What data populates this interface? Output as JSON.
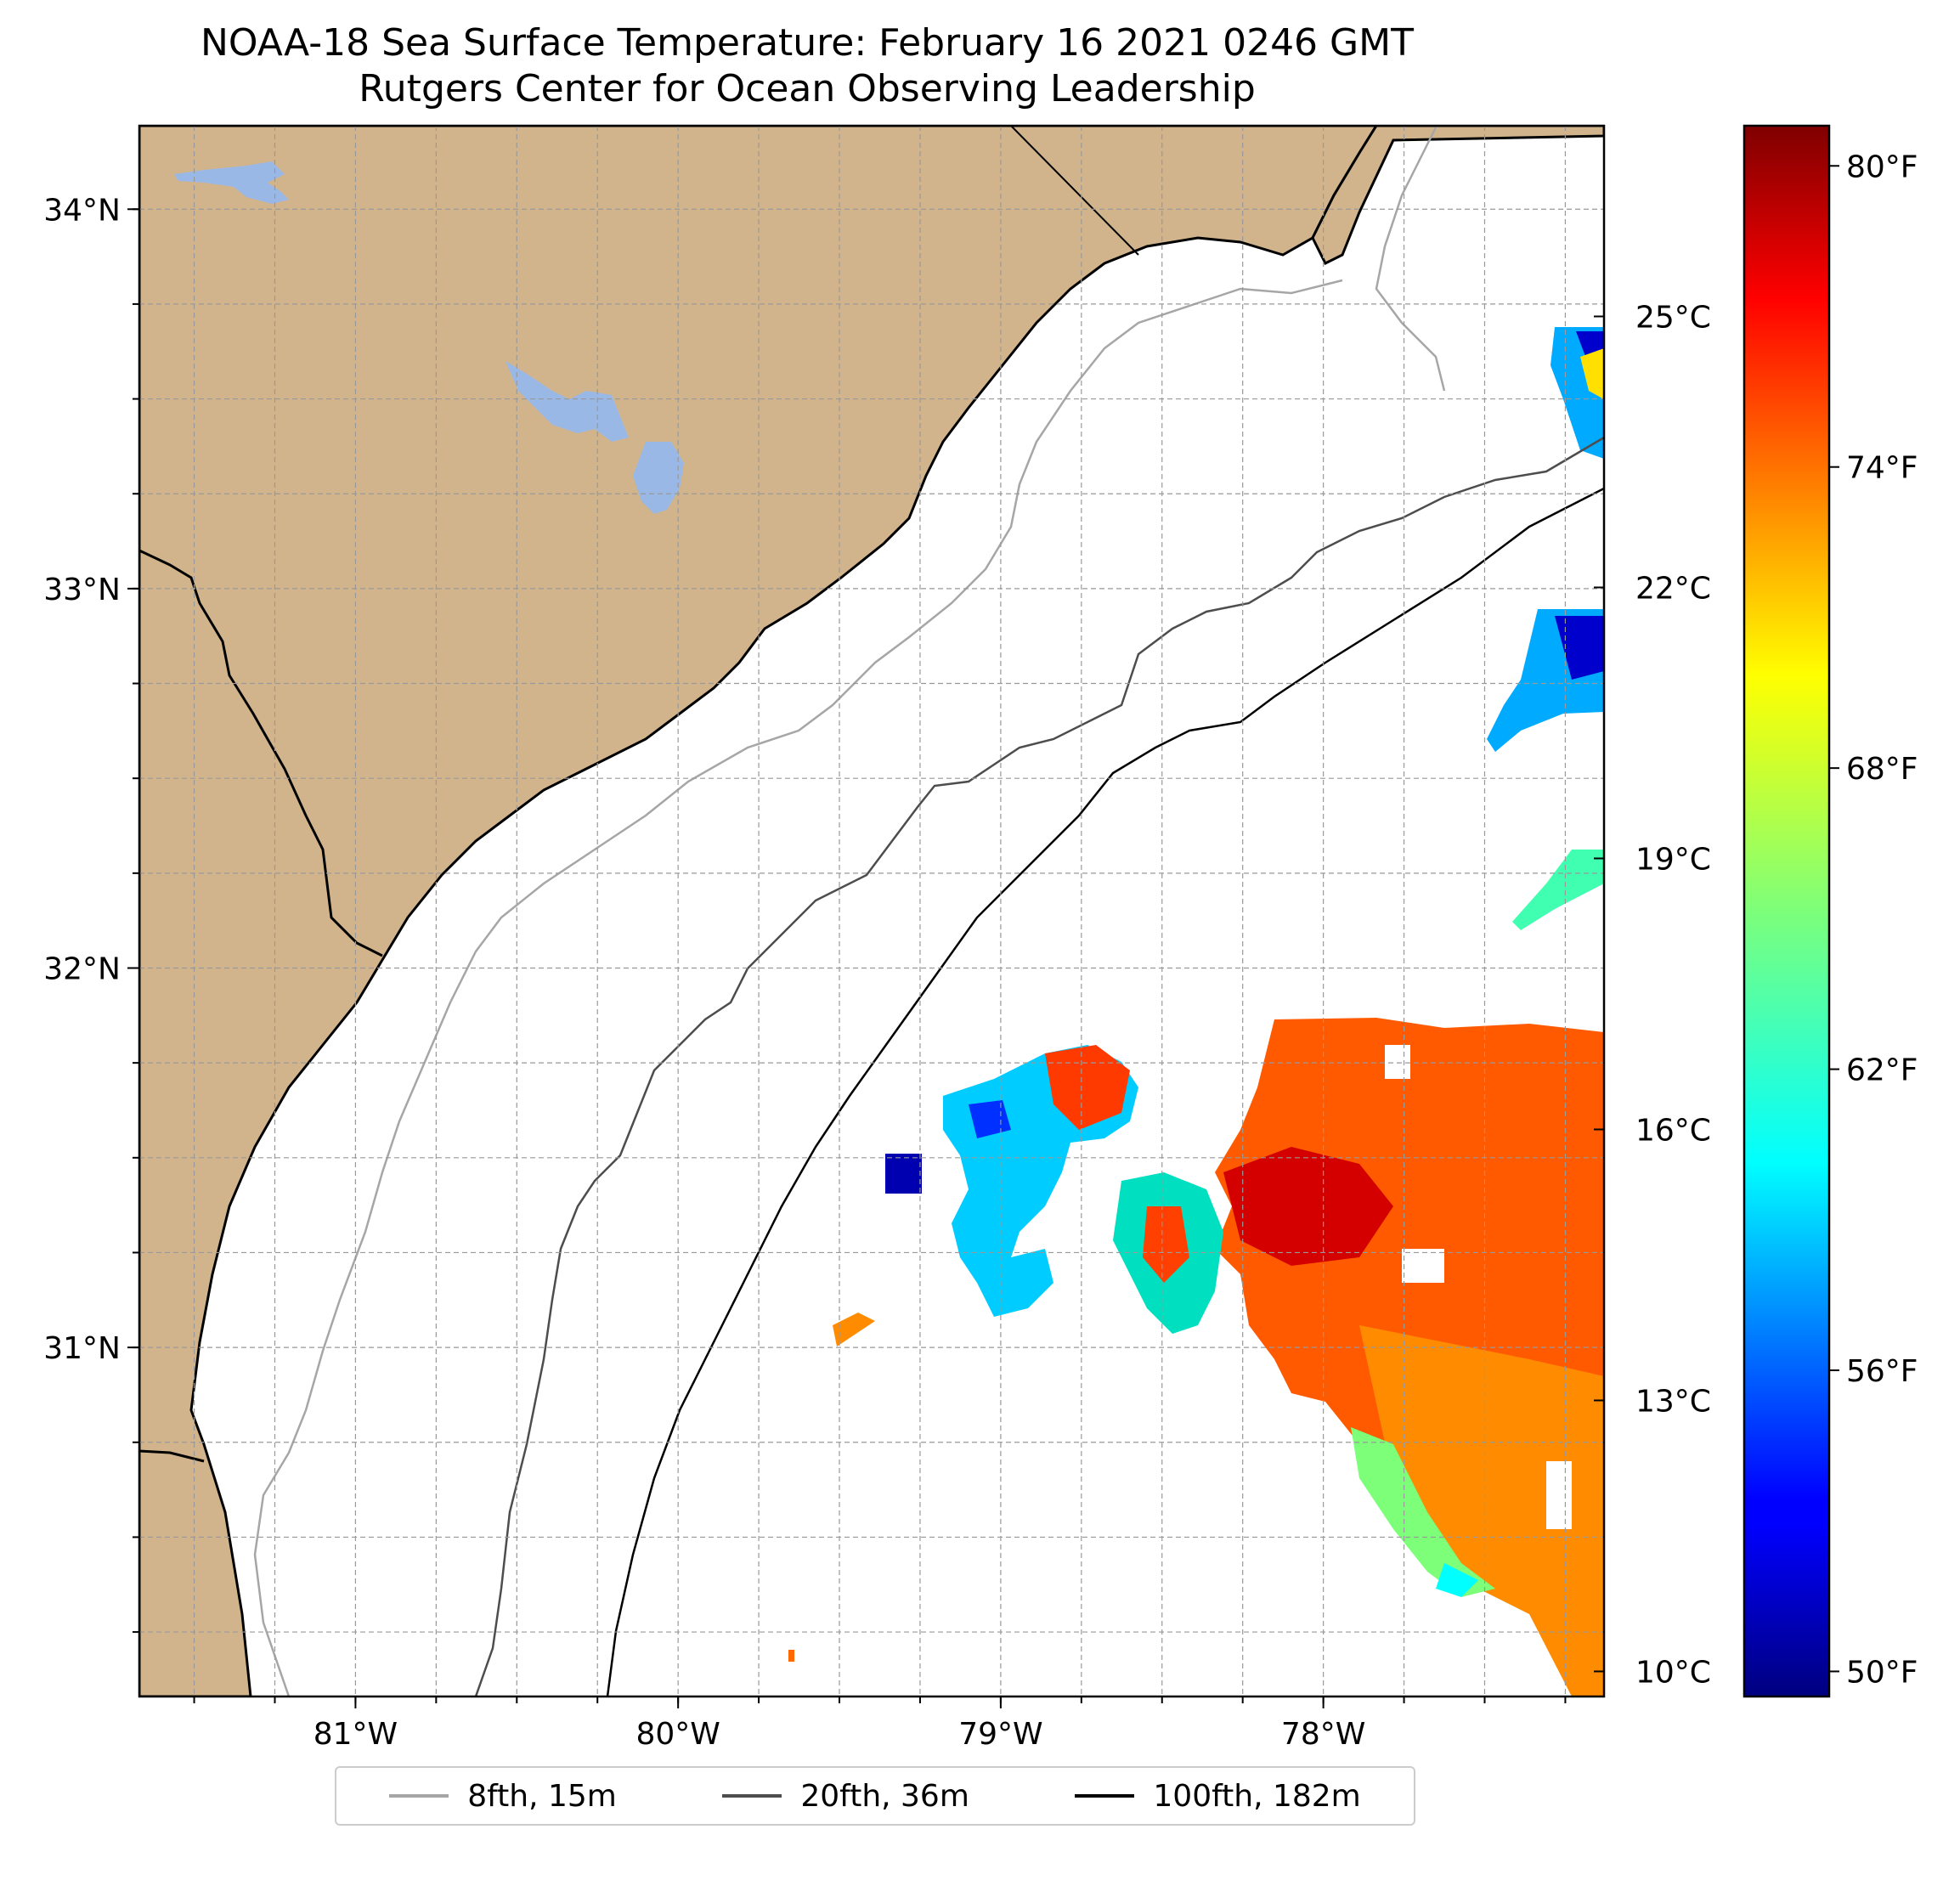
{
  "title": "NOAA-18 Sea Surface Temperature: February 16 2021 0246 GMT",
  "subtitle": "Rutgers Center for Ocean Observing Leadership",
  "map": {
    "lon_range": [
      -81.67,
      -77.13
    ],
    "lat_range": [
      30.08,
      34.22
    ],
    "lat_ticks": [
      {
        "value": 34,
        "label": "34°N"
      },
      {
        "value": 33,
        "label": "33°N"
      },
      {
        "value": 32,
        "label": "32°N"
      },
      {
        "value": 31,
        "label": "31°N"
      }
    ],
    "lon_ticks": [
      {
        "value": -81,
        "label": "81°W"
      },
      {
        "value": -80,
        "label": "80°W"
      },
      {
        "value": -79,
        "label": "79°W"
      },
      {
        "value": -78,
        "label": "78°W"
      }
    ],
    "gridlines": true,
    "land_color": "#d2b48c",
    "water_color": "#9ab8e6"
  },
  "colorbar": {
    "colormap": "jet",
    "celsius_ticks": [
      {
        "value": 25,
        "label": "25°C"
      },
      {
        "value": 22,
        "label": "22°C"
      },
      {
        "value": 19,
        "label": "19°C"
      },
      {
        "value": 16,
        "label": "16°C"
      },
      {
        "value": 13,
        "label": "13°C"
      },
      {
        "value": 10,
        "label": "10°C"
      }
    ],
    "fahrenheit_ticks": [
      {
        "value": 80,
        "label": "80°F"
      },
      {
        "value": 74,
        "label": "74°F"
      },
      {
        "value": 68,
        "label": "68°F"
      },
      {
        "value": 62,
        "label": "62°F"
      },
      {
        "value": 56,
        "label": "56°F"
      },
      {
        "value": 50,
        "label": "50°F"
      }
    ]
  },
  "legend": {
    "placement": "bottom-center",
    "entries": [
      {
        "label": "8fth, 15m",
        "color": "#a6a6a6"
      },
      {
        "label": "20fth, 36m",
        "color": "#4d4d4d"
      },
      {
        "label": "100fth, 182m",
        "color": "#000000"
      }
    ]
  }
}
